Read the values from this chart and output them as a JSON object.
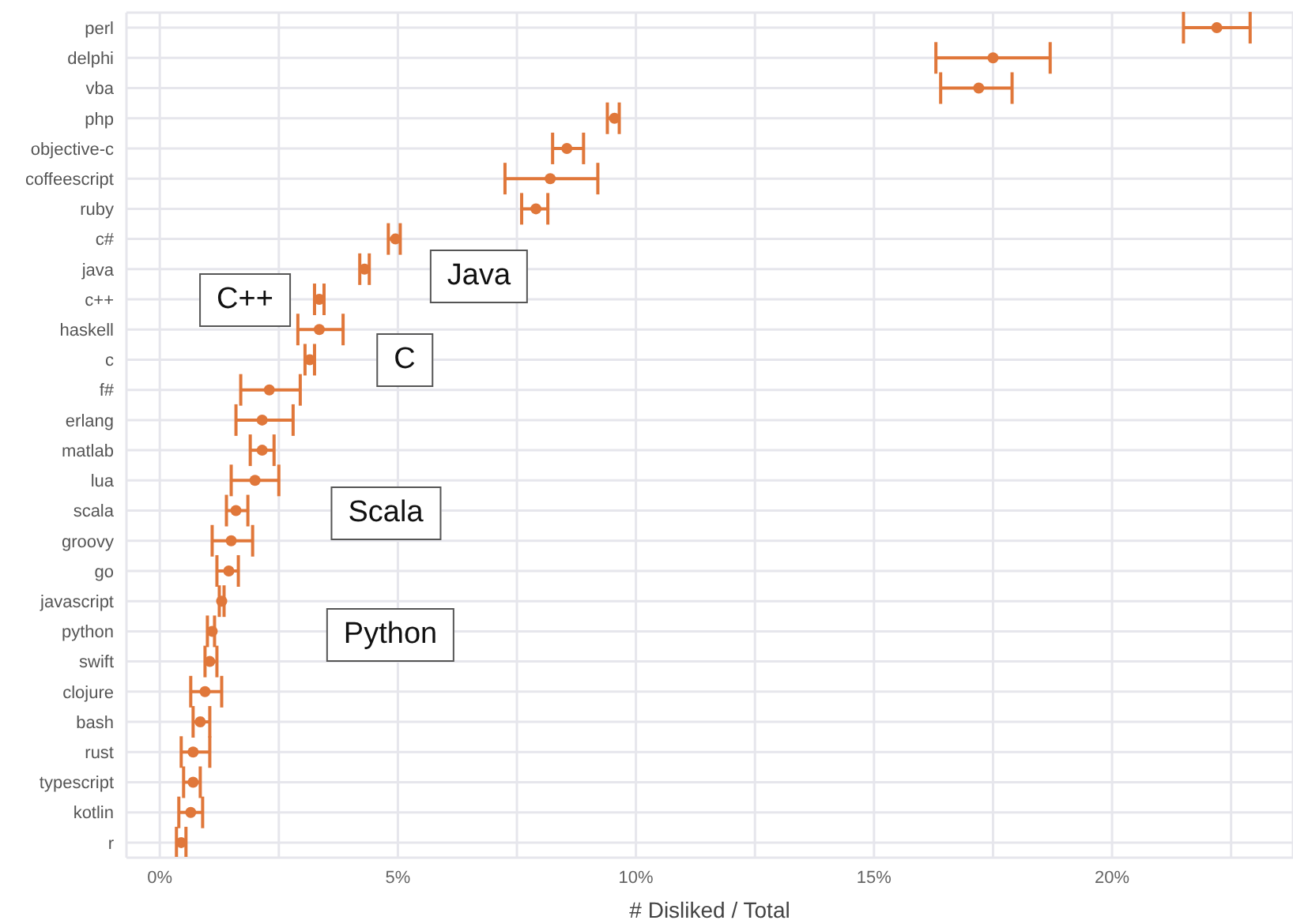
{
  "chart_data": {
    "type": "scatter",
    "orientation": "horizontal",
    "xlabel": "# Disliked / Total",
    "categories": [
      "perl",
      "delphi",
      "vba",
      "php",
      "objective-c",
      "coffeescript",
      "ruby",
      "c#",
      "java",
      "c++",
      "haskell",
      "c",
      "f#",
      "erlang",
      "matlab",
      "lua",
      "scala",
      "groovy",
      "go",
      "javascript",
      "python",
      "swift",
      "clojure",
      "bash",
      "rust",
      "typescript",
      "kotlin",
      "r"
    ],
    "values": [
      22.2,
      17.5,
      17.2,
      9.55,
      8.55,
      8.2,
      7.9,
      4.95,
      4.3,
      3.35,
      3.35,
      3.15,
      2.3,
      2.15,
      2.15,
      2.0,
      1.6,
      1.5,
      1.45,
      1.3,
      1.1,
      1.05,
      0.95,
      0.85,
      0.7,
      0.7,
      0.65,
      0.45
    ],
    "errors": [
      [
        21.5,
        22.9
      ],
      [
        16.3,
        18.7
      ],
      [
        16.4,
        17.9
      ],
      [
        9.4,
        9.65
      ],
      [
        8.25,
        8.9
      ],
      [
        7.25,
        9.2
      ],
      [
        7.6,
        8.15
      ],
      [
        4.8,
        5.05
      ],
      [
        4.2,
        4.4
      ],
      [
        3.25,
        3.45
      ],
      [
        2.9,
        3.85
      ],
      [
        3.05,
        3.25
      ],
      [
        1.7,
        2.95
      ],
      [
        1.6,
        2.8
      ],
      [
        1.9,
        2.4
      ],
      [
        1.5,
        2.5
      ],
      [
        1.4,
        1.85
      ],
      [
        1.1,
        1.95
      ],
      [
        1.2,
        1.65
      ],
      [
        1.25,
        1.35
      ],
      [
        1.0,
        1.15
      ],
      [
        0.95,
        1.2
      ],
      [
        0.65,
        1.3
      ],
      [
        0.7,
        1.05
      ],
      [
        0.45,
        1.05
      ],
      [
        0.5,
        0.85
      ],
      [
        0.4,
        0.9
      ],
      [
        0.35,
        0.55
      ]
    ],
    "color": "#e0773a",
    "marker": "circle",
    "grid": true,
    "xlim": [
      -0.7,
      23.8
    ],
    "xticks": [
      {
        "value": 0,
        "label": "0%"
      },
      {
        "value": 2.5,
        "label": null
      },
      {
        "value": 5,
        "label": "5%"
      },
      {
        "value": 7.5,
        "label": null
      },
      {
        "value": 10,
        "label": "10%"
      },
      {
        "value": 12.5,
        "label": null
      },
      {
        "value": 15,
        "label": "15%"
      },
      {
        "value": 17.5,
        "label": null
      },
      {
        "value": 20,
        "label": "20%"
      },
      {
        "value": 22.5,
        "label": null
      }
    ],
    "annotations": [
      "C++",
      "Java",
      "C",
      "Scala",
      "Python"
    ]
  }
}
